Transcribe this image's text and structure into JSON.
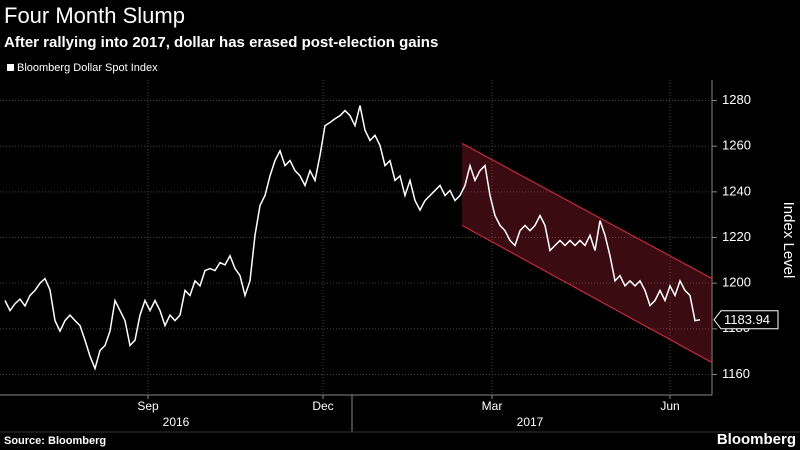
{
  "chart_data": {
    "type": "line",
    "title": "Four Month Slump",
    "subtitle": "After rallying into 2017, dollar has erased post-election gains",
    "ylabel": "Index Level",
    "source": "Source: Bloomberg",
    "brand": "Bloomberg",
    "series": [
      {
        "name": "Bloomberg Dollar Spot Index",
        "color": "#ffffff",
        "values": [
          1192.4,
          1188,
          1191,
          1193,
          1190,
          1194.6,
          1196.8,
          1200,
          1202,
          1197,
          1183.6,
          1179,
          1183.6,
          1186,
          1183.6,
          1181.4,
          1175,
          1168,
          1162.6,
          1170.5,
          1172.7,
          1179,
          1192.4,
          1188,
          1183.6,
          1172.7,
          1175,
          1186,
          1192.4,
          1188,
          1192.4,
          1188,
          1181.4,
          1186,
          1183.6,
          1186,
          1196.8,
          1194.6,
          1201,
          1198.8,
          1205.5,
          1206.4,
          1205.5,
          1209,
          1208,
          1212,
          1206.4,
          1203.3,
          1194.6,
          1201,
          1221,
          1234,
          1238.4,
          1247,
          1253.7,
          1258,
          1251.5,
          1253.7,
          1249.3,
          1247,
          1242.8,
          1249.3,
          1245,
          1256,
          1269,
          1270.4,
          1272,
          1273.4,
          1275.6,
          1273.4,
          1269,
          1277.8,
          1267,
          1262.5,
          1264.8,
          1260.3,
          1251.5,
          1253.7,
          1245,
          1247,
          1238.4,
          1245,
          1236.2,
          1232,
          1236.2,
          1238.4,
          1240.6,
          1242.8,
          1238.4,
          1240.6,
          1236.2,
          1238.4,
          1242.8,
          1251.5,
          1245,
          1249.3,
          1251.5,
          1238.4,
          1229.6,
          1225.3,
          1223,
          1218.7,
          1216.5,
          1223,
          1225.3,
          1223,
          1225.3,
          1229.6,
          1225.3,
          1214.3,
          1216.5,
          1218.7,
          1216.5,
          1218.7,
          1216.5,
          1218.7,
          1216.5,
          1221,
          1214.3,
          1227.4,
          1221,
          1212,
          1201,
          1203.3,
          1198.8,
          1201,
          1198.8,
          1201,
          1196.8,
          1190.2,
          1192.4,
          1196.8,
          1192.4,
          1198.8,
          1194.6,
          1201,
          1196.8,
          1194.6,
          1183.6,
          1183.94
        ]
      }
    ],
    "xlim": [
      -1,
      141.4
    ],
    "xticks": [
      {
        "value": 28.6,
        "label": "Sep"
      },
      {
        "value": 63.6,
        "label": "Dec"
      },
      {
        "value": 97.4,
        "label": "Mar"
      },
      {
        "value": 133,
        "label": "Jun"
      }
    ],
    "years": [
      {
        "value": 34.2,
        "label": "2016"
      },
      {
        "value": 105,
        "label": "2017"
      }
    ],
    "ylim": [
      1151,
      1289
    ],
    "yticks": [
      1160,
      1180,
      1200,
      1220,
      1240,
      1260,
      1280
    ],
    "channel": {
      "x": [
        91.4,
        141.4
      ],
      "upper": [
        1261.2,
        1202
      ],
      "lower": [
        1225.3,
        1165.2
      ],
      "color": "#c0283c"
    },
    "grid": true
  }
}
